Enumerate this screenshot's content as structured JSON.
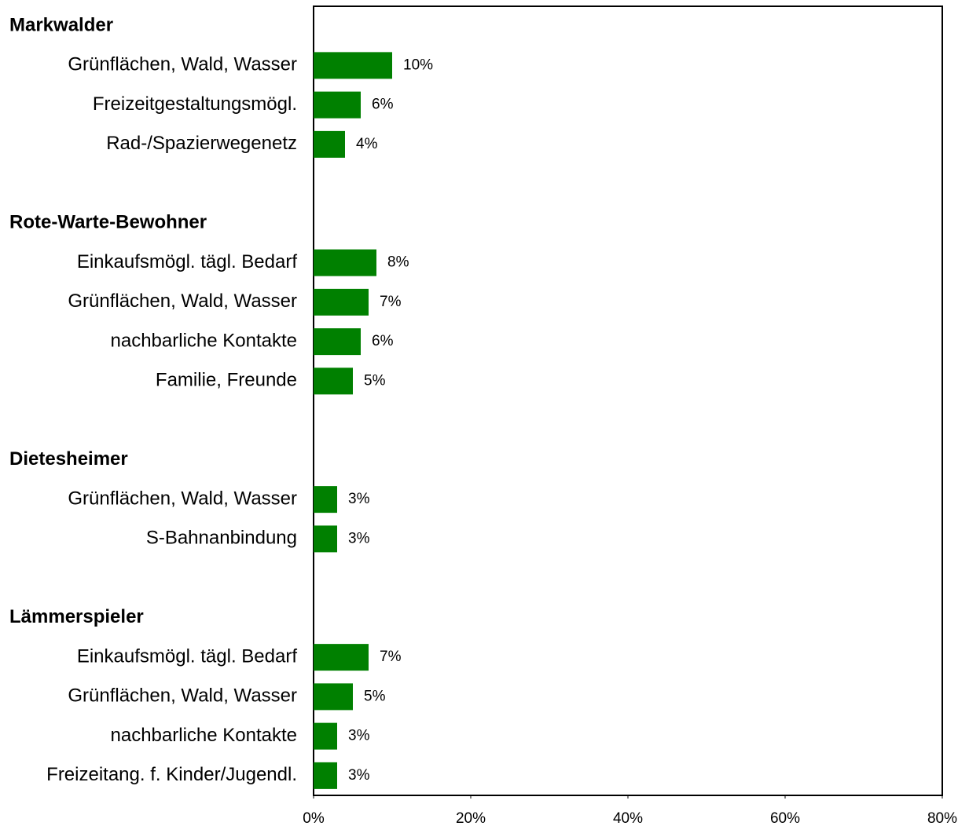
{
  "chart_data": {
    "type": "bar",
    "orientation": "horizontal",
    "color": "#008000",
    "groups": [
      {
        "name": "Markwalder",
        "categories": [
          "Grünflächen, Wald, Wasser",
          "Freizeitgestaltungsmögl.",
          "Rad-/Spazierwegenetz"
        ],
        "values": [
          10,
          6,
          4
        ],
        "value_labels": [
          "10%",
          "6%",
          "4%"
        ]
      },
      {
        "name": "Rote-Warte-Bewohner",
        "categories": [
          "Einkaufsmögl. tägl. Bedarf",
          "Grünflächen, Wald, Wasser",
          "nachbarliche Kontakte",
          "Familie, Freunde"
        ],
        "values": [
          8,
          7,
          6,
          5
        ],
        "value_labels": [
          "8%",
          "7%",
          "6%",
          "5%"
        ]
      },
      {
        "name": "Dietesheimer",
        "categories": [
          "Grünflächen, Wald, Wasser",
          "S-Bahnanbindung"
        ],
        "values": [
          3,
          3
        ],
        "value_labels": [
          "3%",
          "3%"
        ]
      },
      {
        "name": "Lämmerspieler",
        "categories": [
          "Einkaufsmögl. tägl. Bedarf",
          "Grünflächen, Wald, Wasser",
          "nachbarliche Kontakte",
          "Freizeitang. f. Kinder/Jugendl."
        ],
        "values": [
          7,
          5,
          3,
          3
        ],
        "value_labels": [
          "7%",
          "5%",
          "3%",
          "3%"
        ]
      }
    ],
    "xlim": [
      0,
      80
    ],
    "xticks": [
      {
        "value": 0,
        "label": "0%"
      },
      {
        "value": 20,
        "label": "20%"
      },
      {
        "value": 40,
        "label": "40%"
      },
      {
        "value": 60,
        "label": "60%"
      },
      {
        "value": 80,
        "label": "80%"
      }
    ]
  }
}
